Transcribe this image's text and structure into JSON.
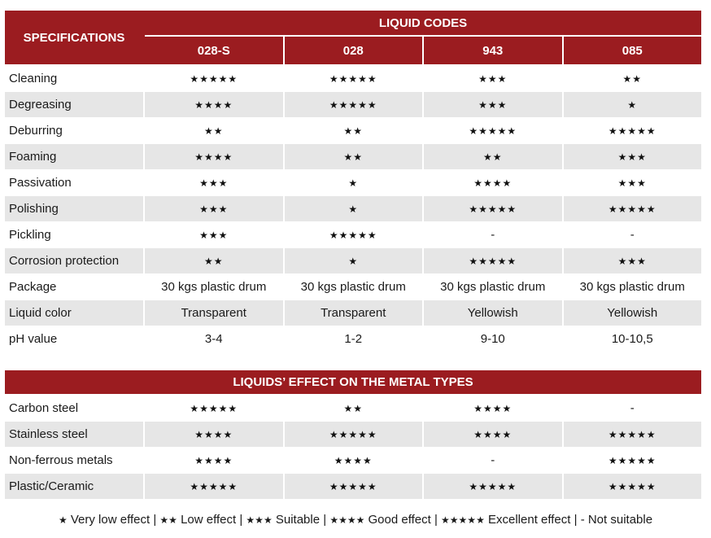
{
  "header": {
    "specifications": "SPECIFICATIONS",
    "liquid_codes": "LIQUID CODES",
    "codes": [
      "028-S",
      "028",
      "943",
      "085"
    ]
  },
  "specs": [
    {
      "label": "Cleaning",
      "values": [
        "★★★★★",
        "★★★★★",
        "★★★",
        "★★"
      ]
    },
    {
      "label": "Degreasing",
      "values": [
        "★★★★",
        "★★★★★",
        "★★★",
        "★"
      ]
    },
    {
      "label": "Deburring",
      "values": [
        "★★",
        "★★",
        "★★★★★",
        "★★★★★"
      ]
    },
    {
      "label": "Foaming",
      "values": [
        "★★★★",
        "★★",
        "★★",
        "★★★"
      ]
    },
    {
      "label": "Passivation",
      "values": [
        "★★★",
        "★",
        "★★★★",
        "★★★"
      ]
    },
    {
      "label": "Polishing",
      "values": [
        "★★★",
        "★",
        "★★★★★",
        "★★★★★"
      ]
    },
    {
      "label": "Pickling",
      "values": [
        "★★★",
        "★★★★★",
        "-",
        "-"
      ]
    },
    {
      "label": "Corrosion protection",
      "values": [
        "★★",
        "★",
        "★★★★★",
        "★★★"
      ]
    },
    {
      "label": "Package",
      "values": [
        "30 kgs plastic drum",
        "30 kgs plastic drum",
        "30 kgs plastic drum",
        "30 kgs plastic drum"
      ]
    },
    {
      "label": "Liquid color",
      "values": [
        "Transparent",
        "Transparent",
        "Yellowish",
        "Yellowish"
      ]
    },
    {
      "label": "pH value",
      "values": [
        "3-4",
        "1-2",
        "9-10",
        "10-10,5"
      ]
    }
  ],
  "metal_header": "LIQUIDS’ EFFECT ON THE METAL TYPES",
  "metals": [
    {
      "label": "Carbon steel",
      "values": [
        "★★★★★",
        "★★",
        "★★★★",
        "-"
      ]
    },
    {
      "label": "Stainless steel",
      "values": [
        "★★★★",
        "★★★★★",
        "★★★★",
        "★★★★★"
      ]
    },
    {
      "label": "Non-ferrous metals",
      "values": [
        "★★★★",
        "★★★★",
        "-",
        "★★★★★"
      ]
    },
    {
      "label": "Plastic/Ceramic",
      "values": [
        "★★★★★",
        "★★★★★",
        "★★★★★",
        "★★★★★"
      ]
    }
  ],
  "legend": [
    {
      "symbol": "★",
      "text": " Very low effect"
    },
    {
      "symbol": "★★",
      "text": " Low effect"
    },
    {
      "symbol": "★★★",
      "text": " Suitable"
    },
    {
      "symbol": "★★★★",
      "text": " Good effect"
    },
    {
      "symbol": "★★★★★",
      "text": " Excellent effect"
    },
    {
      "symbol": "",
      "text": "- Not suitable"
    }
  ],
  "colors": {
    "header_red": "#9b1c20",
    "row_gray": "#e6e6e6"
  }
}
